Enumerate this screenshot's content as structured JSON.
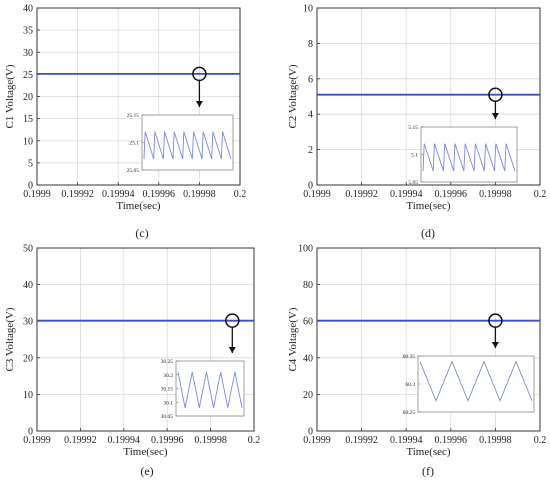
{
  "xlabel": "Time(sec)",
  "colors": {
    "series": "#3b4fc4",
    "inset_series": "#7a86e0",
    "axis": "#333333",
    "grid": "#d9d9d9"
  },
  "chart_data": [
    {
      "type": "line",
      "panel_label": "(c)",
      "ylabel": "C1 Voltage(V)",
      "xlim": [
        0.1999,
        0.2
      ],
      "ylim": [
        0,
        40
      ],
      "xticks": [
        "0.1999",
        "0.19992",
        "0.19994",
        "0.19996",
        "0.19998",
        "0.2"
      ],
      "yticks": [
        "0",
        "5",
        "10",
        "15",
        "20",
        "25",
        "30",
        "35",
        "40"
      ],
      "grid": true,
      "series": [
        {
          "x": [
            0.1999,
            0.2
          ],
          "y": [
            25.1,
            25.1
          ]
        }
      ],
      "marker": {
        "x": 0.19998,
        "y": 25.1
      },
      "inset": {
        "ylim": [
          25.05,
          25.15
        ],
        "yticks": [
          "25.05",
          "25.1",
          "25.15"
        ],
        "waveform": "sawtooth",
        "cycles": 9,
        "min": 25.07,
        "max": 25.12
      }
    },
    {
      "type": "line",
      "panel_label": "(d)",
      "ylabel": "C2 Voltage(V)",
      "xlim": [
        0.1999,
        0.2
      ],
      "ylim": [
        0,
        10
      ],
      "xticks": [
        "0.1999",
        "0.19992",
        "0.19994",
        "0.19996",
        "0.19998",
        "0.2"
      ],
      "yticks": [
        "0",
        "2",
        "4",
        "6",
        "8",
        "10"
      ],
      "grid": true,
      "series": [
        {
          "x": [
            0.1999,
            0.2
          ],
          "y": [
            5.1,
            5.1
          ]
        }
      ],
      "marker": {
        "x": 0.19998,
        "y": 5.1
      },
      "inset": {
        "ylim": [
          5.05,
          5.15
        ],
        "yticks": [
          "5.05",
          "5.1",
          "5.15"
        ],
        "waveform": "sawtooth",
        "cycles": 9,
        "min": 5.07,
        "max": 5.12
      }
    },
    {
      "type": "line",
      "panel_label": "(e)",
      "ylabel": "C3 Voltage(V)",
      "xlim": [
        0.1999,
        0.2
      ],
      "ylim": [
        0,
        50
      ],
      "xticks": [
        "0.1999",
        "0.19992",
        "0.19994",
        "0.19996",
        "0.19998",
        "0.2"
      ],
      "yticks": [
        "0",
        "10",
        "20",
        "30",
        "40",
        "50"
      ],
      "grid": true,
      "series": [
        {
          "x": [
            0.1999,
            0.2
          ],
          "y": [
            30.15,
            30.15
          ]
        }
      ],
      "marker": {
        "x": 0.19999,
        "y": 30.15
      },
      "inset": {
        "ylim": [
          30.05,
          30.25
        ],
        "yticks": [
          "30.05",
          "30.1",
          "30.15",
          "30.2",
          "30.25"
        ],
        "waveform": "triangle",
        "cycles": 4.5,
        "min": 30.08,
        "max": 30.21
      }
    },
    {
      "type": "line",
      "panel_label": "(f)",
      "ylabel": "C4 Voltage(V)",
      "xlim": [
        0.1999,
        0.2
      ],
      "ylim": [
        0,
        100
      ],
      "xticks": [
        "0.1999",
        "0.19992",
        "0.19994",
        "0.19996",
        "0.19998",
        "0.2"
      ],
      "yticks": [
        "0",
        "20",
        "40",
        "60",
        "80",
        "100"
      ],
      "grid": true,
      "series": [
        {
          "x": [
            0.1999,
            0.2
          ],
          "y": [
            60.3,
            60.3
          ]
        }
      ],
      "marker": {
        "x": 0.19998,
        "y": 60.3
      },
      "inset": {
        "ylim": [
          60.25,
          60.35
        ],
        "yticks": [
          "60.25",
          "60.3",
          "60.35"
        ],
        "waveform": "triangle",
        "cycles": 3.5,
        "min": 60.27,
        "max": 60.34
      }
    }
  ]
}
